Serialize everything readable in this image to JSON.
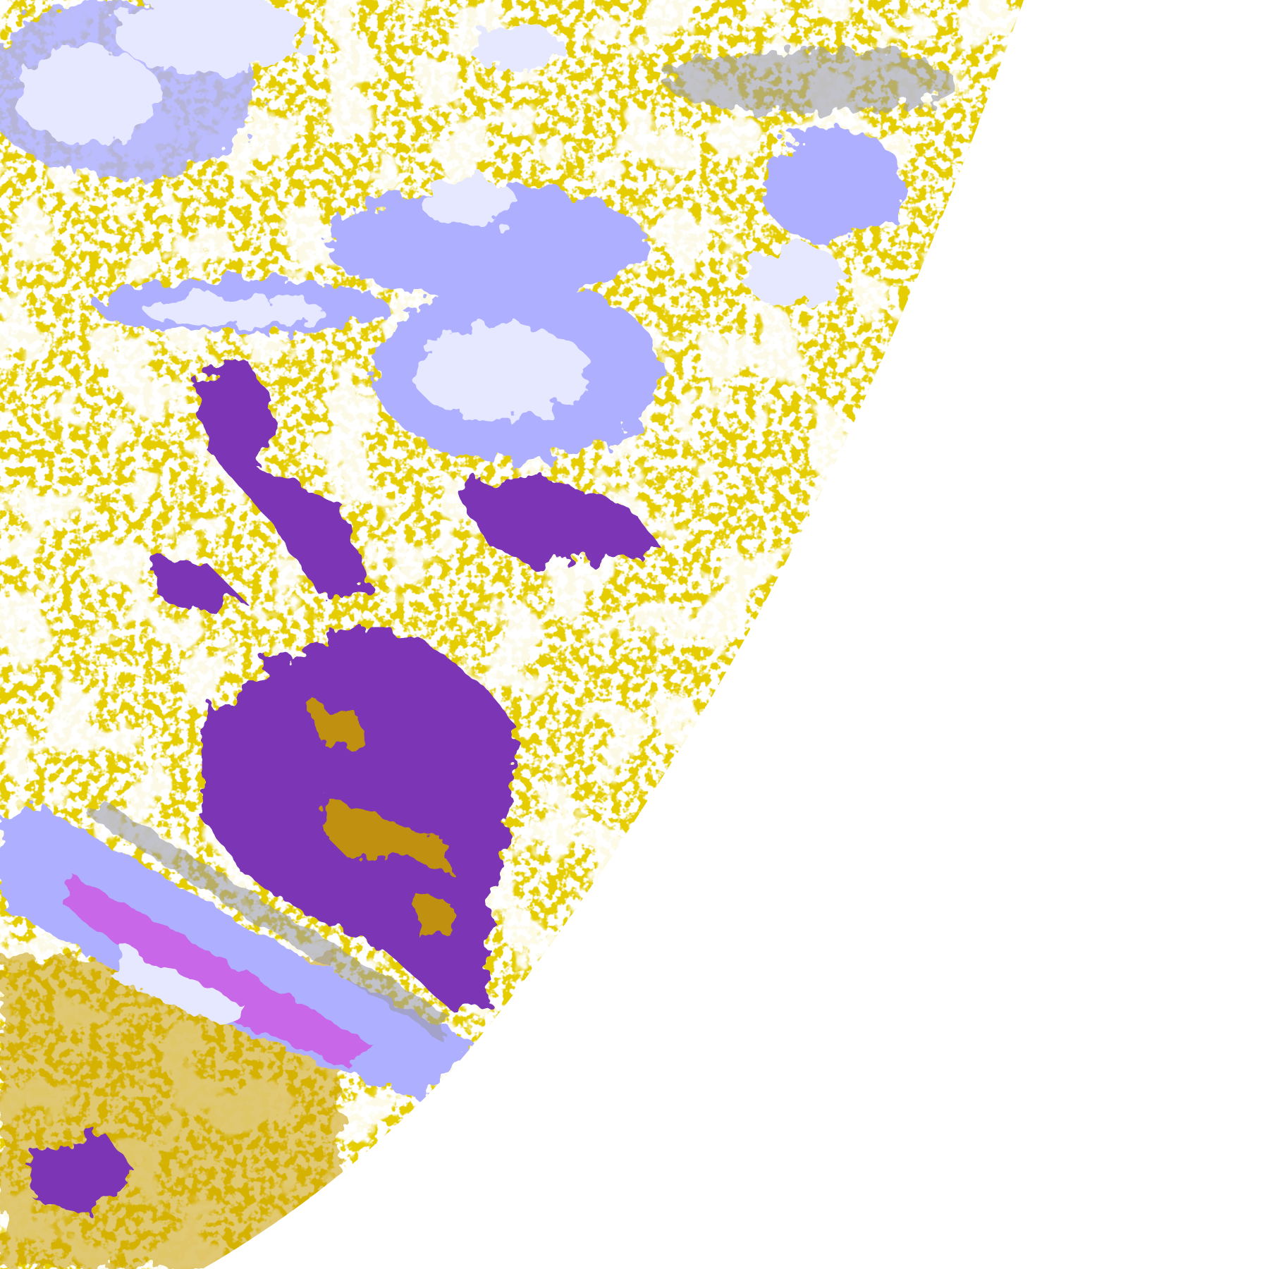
{
  "map": {
    "type": "satellite-classification-image",
    "colors": {
      "background": "#ffffff",
      "clear_low": "#c89c00",
      "land_purple": "#7b35b5",
      "cloud_lavender": "#aeb0ff",
      "cloud_light": "#e6e8ff",
      "cloud_gray": "#9a9aa6",
      "cloud_magenta": "#d04fe0"
    }
  }
}
